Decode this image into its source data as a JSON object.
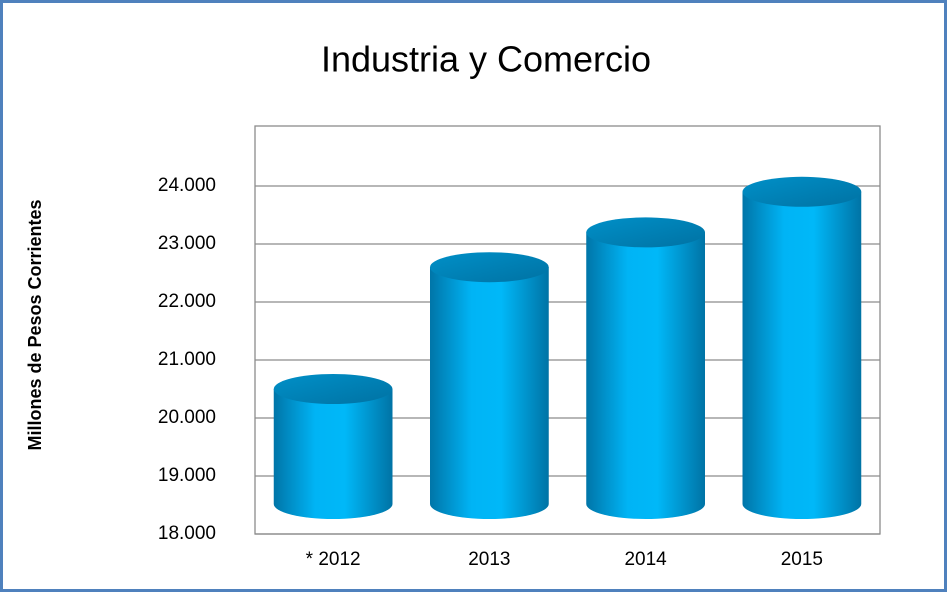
{
  "chart_data": {
    "type": "bar",
    "title": "Industria y Comercio",
    "y_axis_label": "Millones de Pesos Corrientes",
    "categories": [
      "* 2012",
      "2013",
      "2014",
      "2015"
    ],
    "values": [
      20500,
      22600,
      23200,
      23900
    ],
    "color": "#00b0f0",
    "ylim": [
      18000,
      25000
    ],
    "yticks": [
      {
        "value": 18000,
        "label": "18.000"
      },
      {
        "value": 19000,
        "label": "19.000"
      },
      {
        "value": 20000,
        "label": "20.000"
      },
      {
        "value": 21000,
        "label": "21.000"
      },
      {
        "value": 22000,
        "label": "22.000"
      },
      {
        "value": 23000,
        "label": "23.000"
      },
      {
        "value": 24000,
        "label": "24.000"
      }
    ],
    "grid": true
  }
}
